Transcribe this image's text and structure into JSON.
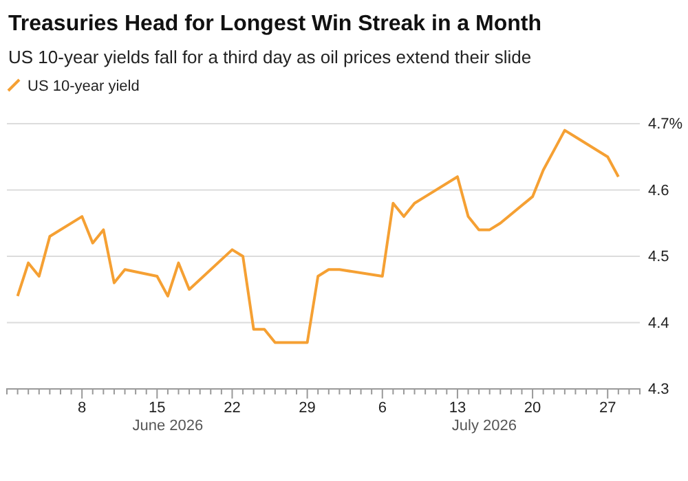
{
  "chart_data": {
    "type": "line",
    "title": "Treasuries Head for Longest Win Streak in a Month",
    "subtitle": "US 10-year yields fall for a third day as oil prices extend their slide",
    "x": [
      "2026-06-02",
      "2026-06-03",
      "2026-06-04",
      "2026-06-05",
      "2026-06-08",
      "2026-06-09",
      "2026-06-10",
      "2026-06-11",
      "2026-06-12",
      "2026-06-15",
      "2026-06-16",
      "2026-06-17",
      "2026-06-18",
      "2026-06-22",
      "2026-06-23",
      "2026-06-24",
      "2026-06-25",
      "2026-06-26",
      "2026-06-29",
      "2026-06-30",
      "2026-07-01",
      "2026-07-02",
      "2026-07-06",
      "2026-07-07",
      "2026-07-08",
      "2026-07-09",
      "2026-07-10",
      "2026-07-13",
      "2026-07-14",
      "2026-07-15",
      "2026-07-16",
      "2026-07-17",
      "2026-07-20",
      "2026-07-21",
      "2026-07-22",
      "2026-07-23",
      "2026-07-24",
      "2026-07-27",
      "2026-07-28"
    ],
    "series": [
      {
        "name": "US 10-year yield",
        "color": "#f5a033",
        "values": [
          4.44,
          4.49,
          4.47,
          4.53,
          4.56,
          4.52,
          4.54,
          4.46,
          4.48,
          4.47,
          4.44,
          4.49,
          4.45,
          4.51,
          4.5,
          4.39,
          4.39,
          4.37,
          4.37,
          4.47,
          4.48,
          4.48,
          4.47,
          4.58,
          4.56,
          4.58,
          4.59,
          4.62,
          4.56,
          4.54,
          4.54,
          4.55,
          4.59,
          4.63,
          4.66,
          4.69,
          4.68,
          4.65,
          4.62
        ]
      }
    ],
    "xlim": [
      "2026-06-01",
      "2026-07-30"
    ],
    "xticks": [
      {
        "value": "2026-06-01",
        "label": null
      },
      {
        "value": "2026-06-02",
        "label": null
      },
      {
        "value": "2026-06-03",
        "label": null
      },
      {
        "value": "2026-06-04",
        "label": null
      },
      {
        "value": "2026-06-05",
        "label": null
      },
      {
        "value": "2026-06-06",
        "label": null
      },
      {
        "value": "2026-06-07",
        "label": null
      },
      {
        "value": "2026-06-08",
        "label": "8"
      },
      {
        "value": "2026-06-09",
        "label": null
      },
      {
        "value": "2026-06-10",
        "label": null
      },
      {
        "value": "2026-06-11",
        "label": null
      },
      {
        "value": "2026-06-12",
        "label": null
      },
      {
        "value": "2026-06-13",
        "label": null
      },
      {
        "value": "2026-06-14",
        "label": null
      },
      {
        "value": "2026-06-15",
        "label": "15"
      },
      {
        "value": "2026-06-16",
        "label": null
      },
      {
        "value": "2026-06-17",
        "label": null
      },
      {
        "value": "2026-06-18",
        "label": null
      },
      {
        "value": "2026-06-19",
        "label": null
      },
      {
        "value": "2026-06-20",
        "label": null
      },
      {
        "value": "2026-06-21",
        "label": null
      },
      {
        "value": "2026-06-22",
        "label": "22"
      },
      {
        "value": "2026-06-23",
        "label": null
      },
      {
        "value": "2026-06-24",
        "label": null
      },
      {
        "value": "2026-06-25",
        "label": null
      },
      {
        "value": "2026-06-26",
        "label": null
      },
      {
        "value": "2026-06-27",
        "label": null
      },
      {
        "value": "2026-06-28",
        "label": null
      },
      {
        "value": "2026-06-29",
        "label": "29"
      },
      {
        "value": "2026-06-30",
        "label": null
      },
      {
        "value": "2026-07-01",
        "label": null
      },
      {
        "value": "2026-07-02",
        "label": null
      },
      {
        "value": "2026-07-03",
        "label": null
      },
      {
        "value": "2026-07-04",
        "label": null
      },
      {
        "value": "2026-07-05",
        "label": null
      },
      {
        "value": "2026-07-06",
        "label": "6"
      },
      {
        "value": "2026-07-07",
        "label": null
      },
      {
        "value": "2026-07-08",
        "label": null
      },
      {
        "value": "2026-07-09",
        "label": null
      },
      {
        "value": "2026-07-10",
        "label": null
      },
      {
        "value": "2026-07-11",
        "label": null
      },
      {
        "value": "2026-07-12",
        "label": null
      },
      {
        "value": "2026-07-13",
        "label": "13"
      },
      {
        "value": "2026-07-14",
        "label": null
      },
      {
        "value": "2026-07-15",
        "label": null
      },
      {
        "value": "2026-07-16",
        "label": null
      },
      {
        "value": "2026-07-17",
        "label": null
      },
      {
        "value": "2026-07-18",
        "label": null
      },
      {
        "value": "2026-07-19",
        "label": null
      },
      {
        "value": "2026-07-20",
        "label": "20"
      },
      {
        "value": "2026-07-21",
        "label": null
      },
      {
        "value": "2026-07-22",
        "label": null
      },
      {
        "value": "2026-07-23",
        "label": null
      },
      {
        "value": "2026-07-24",
        "label": null
      },
      {
        "value": "2026-07-25",
        "label": null
      },
      {
        "value": "2026-07-26",
        "label": null
      },
      {
        "value": "2026-07-27",
        "label": "27"
      },
      {
        "value": "2026-07-28",
        "label": null
      },
      {
        "value": "2026-07-29",
        "label": null
      }
    ],
    "ylim": [
      4.3,
      4.7
    ],
    "yticks": [
      4.3,
      4.4,
      4.5,
      4.6,
      {
        "value": 4.7,
        "label": "4.7%"
      }
    ],
    "annotations": [
      "June 2026",
      "July 2026"
    ],
    "grid": "y",
    "legend": "top left",
    "marker": "none",
    "line_style": "solid"
  }
}
